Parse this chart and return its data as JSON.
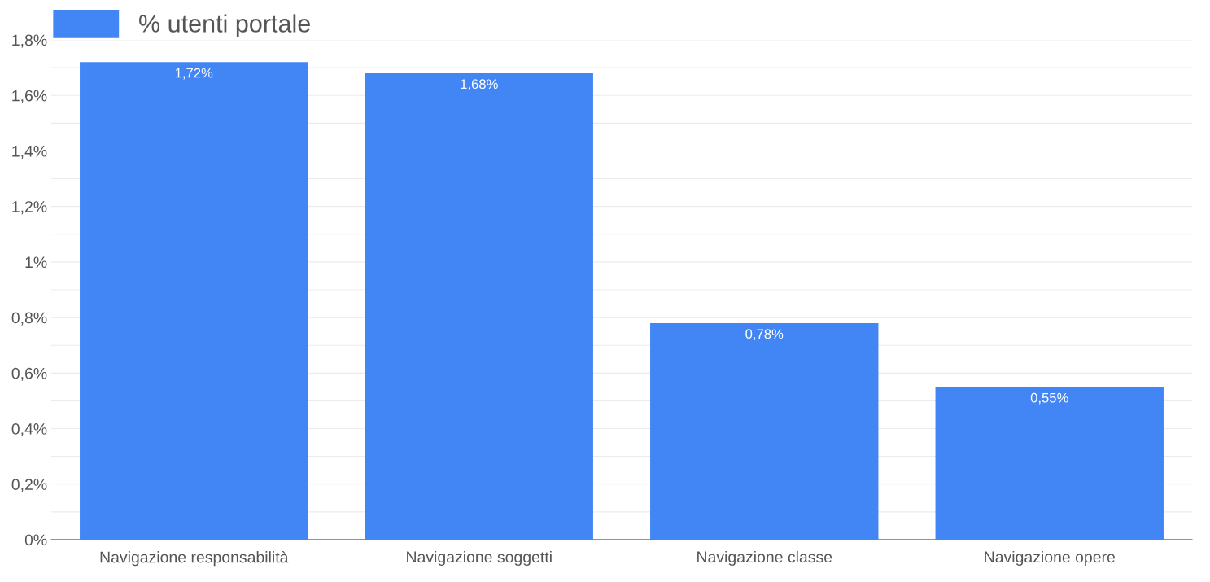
{
  "chart_data": {
    "type": "bar",
    "categories": [
      "Navigazione responsabilità",
      "Navigazione soggetti",
      "Navigazione classe",
      "Navigazione opere"
    ],
    "series": [
      {
        "name": "% utenti portale",
        "color": "#4285f4",
        "values": [
          1.72,
          1.68,
          0.78,
          0.55
        ],
        "value_labels": [
          "1,72%",
          "1,68%",
          "0,78%",
          "0,55%"
        ]
      }
    ],
    "ylim": [
      0,
      1.8
    ],
    "yticks": [
      {
        "value": 0,
        "label": "0%"
      },
      {
        "value": 0.1,
        "label": null
      },
      {
        "value": 0.2,
        "label": "0,2%"
      },
      {
        "value": 0.3,
        "label": null
      },
      {
        "value": 0.4,
        "label": "0,4%"
      },
      {
        "value": 0.5,
        "label": null
      },
      {
        "value": 0.6,
        "label": "0,6%"
      },
      {
        "value": 0.7,
        "label": null
      },
      {
        "value": 0.8,
        "label": "0,8%"
      },
      {
        "value": 0.9,
        "label": null
      },
      {
        "value": 1,
        "label": "1%"
      },
      {
        "value": 1.1,
        "label": null
      },
      {
        "value": 1.2,
        "label": "1,2%"
      },
      {
        "value": 1.3,
        "label": null
      },
      {
        "value": 1.4,
        "label": "1,4%"
      },
      {
        "value": 1.5,
        "label": null
      },
      {
        "value": 1.6,
        "label": "1,6%"
      },
      {
        "value": 1.7,
        "label": null
      },
      {
        "value": 1.8,
        "label": "1,8%"
      }
    ],
    "grid": "y",
    "legend": "top left"
  }
}
